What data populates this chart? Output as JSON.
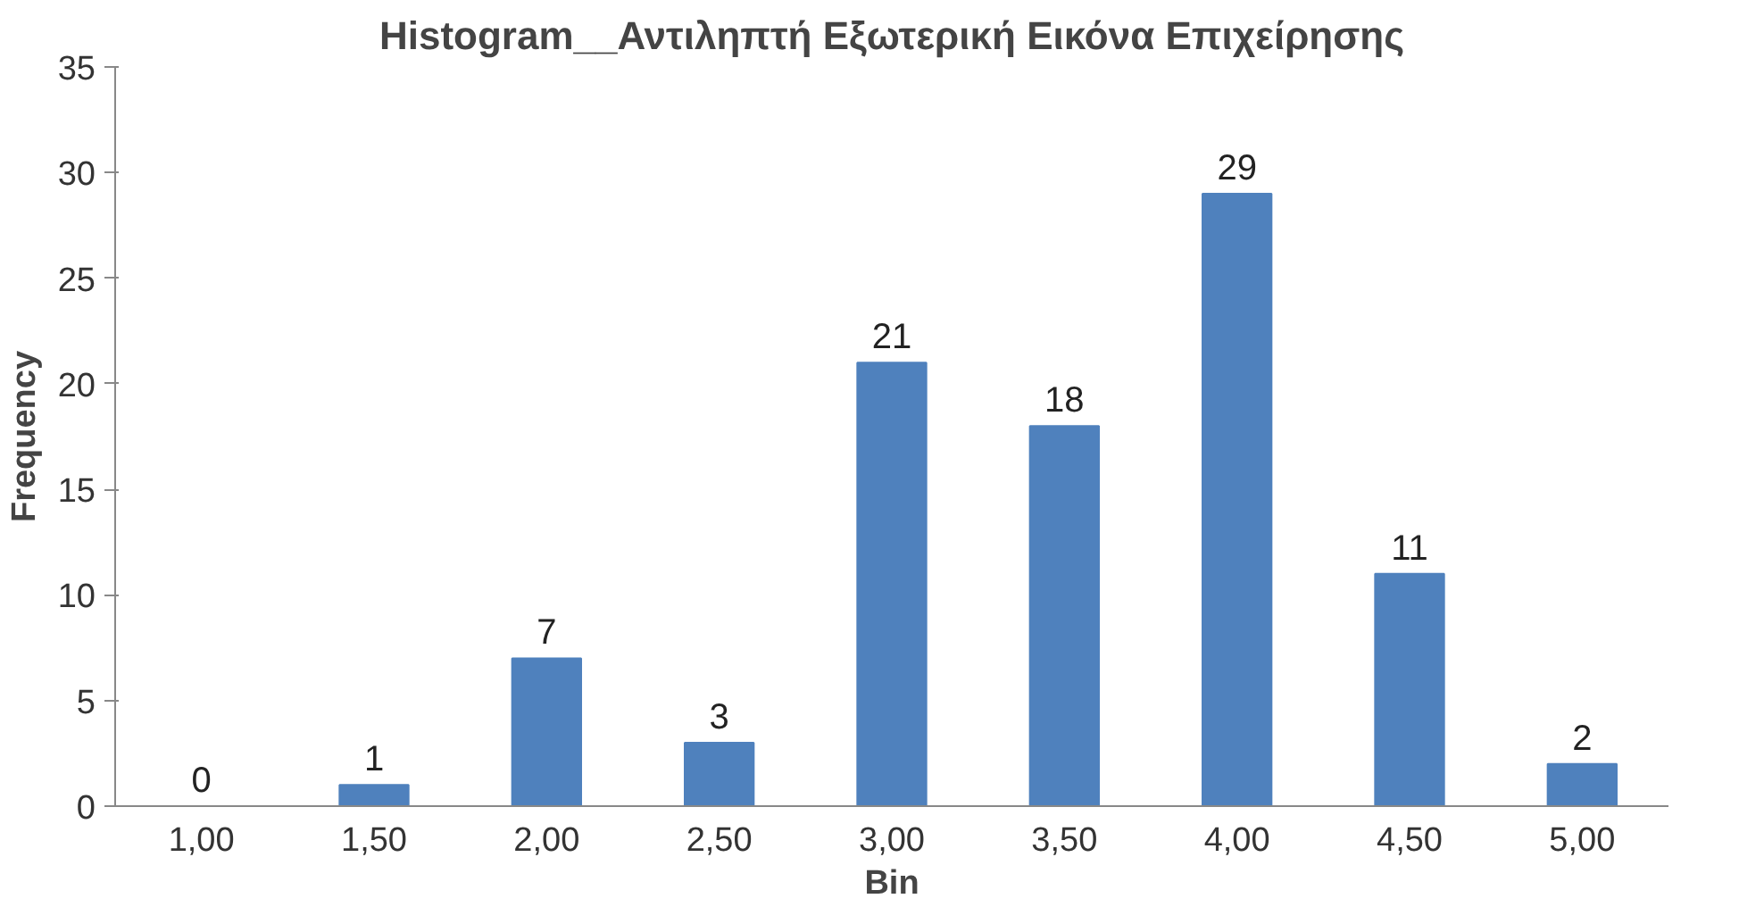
{
  "chart_data": {
    "type": "bar",
    "title": "Histogram__Αντιληπτή Εξωτερική Εικόνα Επιχείρησης",
    "xlabel": "Bin",
    "ylabel": "Frequency",
    "categories": [
      "1,00",
      "1,50",
      "2,00",
      "2,50",
      "3,00",
      "3,50",
      "4,00",
      "4,50",
      "5,00"
    ],
    "values": [
      0,
      1,
      7,
      3,
      21,
      18,
      29,
      11,
      2
    ],
    "color": "#4f81bd",
    "ylim": [
      0,
      35
    ],
    "yticks": [
      0,
      5,
      10,
      15,
      20,
      25,
      30,
      35
    ],
    "grid": false,
    "data_labels": true
  }
}
